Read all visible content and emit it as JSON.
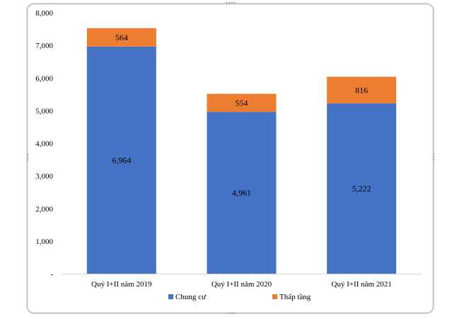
{
  "chart_data": {
    "type": "bar",
    "stacked": true,
    "categories": [
      "Quý I+II năm 2019",
      "Quý I+II năm 2020",
      "Quý I+II năm 2021"
    ],
    "series": [
      {
        "name": "Chung cư",
        "values": [
          6964,
          4961,
          5222
        ],
        "labels": [
          "6,964",
          "4,961",
          "5,222"
        ],
        "color": "#4472C4"
      },
      {
        "name": "Thấp tầng",
        "values": [
          564,
          554,
          816
        ],
        "labels": [
          "564",
          "554",
          "816"
        ],
        "color": "#ED7D31"
      }
    ],
    "ylim": [
      0,
      8000
    ],
    "yticks": [
      0,
      1000,
      2000,
      3000,
      4000,
      5000,
      6000,
      7000,
      8000
    ],
    "ytick_labels": [
      "-",
      "1,000",
      "2,000",
      "3,000",
      "4,000",
      "5,000",
      "6,000",
      "7,000",
      "8,000"
    ],
    "grid": false,
    "legend_position": "bottom"
  }
}
